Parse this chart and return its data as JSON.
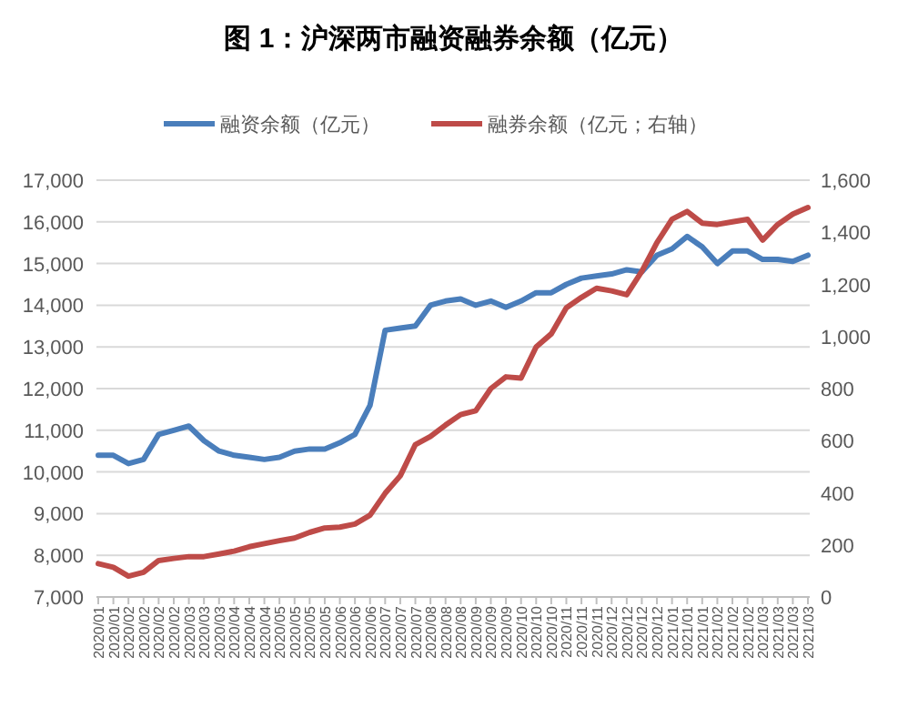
{
  "chart_data": {
    "type": "line",
    "title": "图 1：沪深两市融资融券余额（亿元）",
    "categories": [
      "2020/01",
      "2020/01",
      "2020/02",
      "2020/02",
      "2020/02",
      "2020/02",
      "2020/03",
      "2020/03",
      "2020/03",
      "2020/04",
      "2020/04",
      "2020/04",
      "2020/05",
      "2020/05",
      "2020/05",
      "2020/05",
      "2020/06",
      "2020/06",
      "2020/06",
      "2020/07",
      "2020/07",
      "2020/07",
      "2020/08",
      "2020/08",
      "2020/08",
      "2020/09",
      "2020/09",
      "2020/09",
      "2020/10",
      "2020/10",
      "2020/10",
      "2020/11",
      "2020/11",
      "2020/11",
      "2020/12",
      "2020/12",
      "2020/12",
      "2020/12",
      "2021/01",
      "2021/01",
      "2021/01",
      "2021/02",
      "2021/02",
      "2021/02",
      "2021/03",
      "2021/03",
      "2021/03",
      "2021/03"
    ],
    "series": [
      {
        "name": "融资余额（亿元）",
        "color": "#4a7ebb",
        "values": [
          10400,
          10400,
          10200,
          10300,
          10900,
          11000,
          11100,
          10750,
          10500,
          10400,
          10350,
          10300,
          10350,
          10500,
          10550,
          10550,
          10700,
          10900,
          11600,
          13400,
          13450,
          13500,
          14000,
          14100,
          14150,
          14000,
          14100,
          13950,
          14100,
          14300,
          14300,
          14500,
          14650,
          14700,
          14750,
          14850,
          14800,
          15200,
          15350,
          15650,
          15400,
          15000,
          15300,
          15300,
          15100,
          15100,
          15050,
          15200
        ]
      },
      {
        "name": "融券余额（亿元；右轴）",
        "color": "#be4b48",
        "axis": "y2",
        "values": [
          128,
          114,
          80,
          95,
          140,
          148,
          155,
          155,
          165,
          176,
          193,
          205,
          216,
          226,
          248,
          265,
          268,
          280,
          314,
          398,
          465,
          585,
          616,
          660,
          700,
          715,
          800,
          845,
          840,
          960,
          1010,
          1110,
          1150,
          1185,
          1175,
          1160,
          1250,
          1360,
          1450,
          1480,
          1435,
          1430,
          1440,
          1450,
          1370,
          1430,
          1470,
          1495
        ]
      }
    ],
    "ylim": [
      7000,
      17000
    ],
    "yticks": [
      {
        "value": 7000,
        "label": "7,000"
      },
      {
        "value": 8000,
        "label": "8,000"
      },
      {
        "value": 9000,
        "label": "9,000"
      },
      {
        "value": 10000,
        "label": "10,000"
      },
      {
        "value": 11000,
        "label": "11,000"
      },
      {
        "value": 12000,
        "label": "12,000"
      },
      {
        "value": 13000,
        "label": "13,000"
      },
      {
        "value": 14000,
        "label": "14,000"
      },
      {
        "value": 15000,
        "label": "15,000"
      },
      {
        "value": 16000,
        "label": "16,000"
      },
      {
        "value": 17000,
        "label": "17,000"
      }
    ],
    "y2lim": [
      0,
      1600
    ],
    "y2ticks": [
      0,
      200,
      400,
      600,
      800,
      {
        "value": 1000,
        "label": "1,000"
      },
      {
        "value": 1200,
        "label": "1,200"
      },
      {
        "value": 1400,
        "label": "1,400"
      },
      {
        "value": 1600,
        "label": "1,600"
      }
    ],
    "grid": "y",
    "legend": "top"
  }
}
